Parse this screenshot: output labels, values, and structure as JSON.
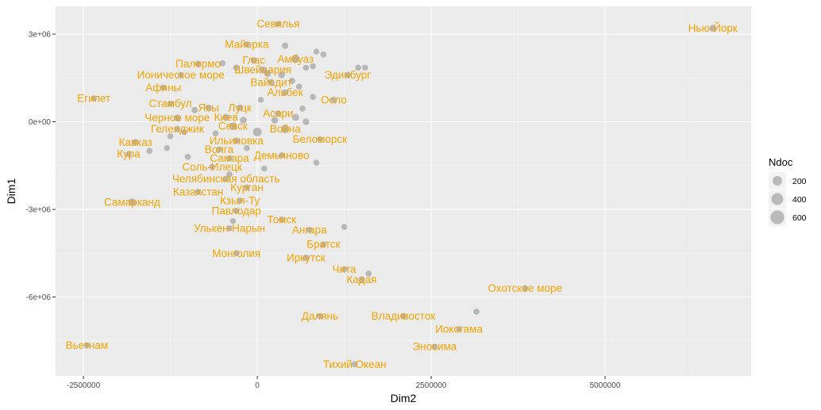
{
  "chart_data": {
    "type": "scatter",
    "title": "",
    "xlabel": "Dim2",
    "ylabel": "Dim1",
    "xlim": [
      -2900000,
      7100000
    ],
    "ylim": [
      -8700000,
      3950000
    ],
    "x_ticks": [
      -2500000,
      0,
      2500000,
      5000000
    ],
    "x_tick_labels": [
      "-2500000",
      "0",
      "2500000",
      "5000000"
    ],
    "y_ticks": [
      3000000,
      0,
      -3000000,
      -6000000
    ],
    "y_tick_labels": [
      "3e+06",
      "0e+00",
      "-3e+06",
      "-6e+06"
    ],
    "grid": true,
    "point_color": "#a6a6a6",
    "label_color": "#f5a300",
    "panel_color": "#ebebeb",
    "legend": {
      "title": "Ndoc",
      "position": "right",
      "entries": [
        {
          "label": "200",
          "value": 200
        },
        {
          "label": "400",
          "value": 400
        },
        {
          "label": "600",
          "value": 600
        }
      ]
    },
    "labeled_points": [
      {
        "label": "Севилья",
        "x": 300000,
        "y": 3350000,
        "ndoc": 30
      },
      {
        "label": "Нью-Йорк",
        "x": 6550000,
        "y": 3200000,
        "ndoc": 60
      },
      {
        "label": "Майорка",
        "x": -150000,
        "y": 2650000,
        "ndoc": 30
      },
      {
        "label": "Глас",
        "x": -50000,
        "y": 2100000,
        "ndoc": 40
      },
      {
        "label": "Амбуаз",
        "x": 550000,
        "y": 2150000,
        "ndoc": 120
      },
      {
        "label": "Палермо",
        "x": -850000,
        "y": 1980000,
        "ndoc": 40
      },
      {
        "label": "Швейцария",
        "x": 80000,
        "y": 1780000,
        "ndoc": 60
      },
      {
        "label": "Ионическое море",
        "x": -1100000,
        "y": 1600000,
        "ndoc": 30
      },
      {
        "label": "Эдинбург",
        "x": 1300000,
        "y": 1600000,
        "ndoc": 40
      },
      {
        "label": "Вайсдит",
        "x": 200000,
        "y": 1350000,
        "ndoc": 40
      },
      {
        "label": "Афины",
        "x": -1350000,
        "y": 1170000,
        "ndoc": 30
      },
      {
        "label": "Альбек",
        "x": 400000,
        "y": 1000000,
        "ndoc": 40
      },
      {
        "label": "Египет",
        "x": -2350000,
        "y": 800000,
        "ndoc": 30
      },
      {
        "label": "Осло",
        "x": 1100000,
        "y": 750000,
        "ndoc": 30
      },
      {
        "label": "Стамбул",
        "x": -1250000,
        "y": 620000,
        "ndoc": 30
      },
      {
        "label": "Ясы",
        "x": -700000,
        "y": 480000,
        "ndoc": 40
      },
      {
        "label": "Луцк",
        "x": -250000,
        "y": 480000,
        "ndoc": 40
      },
      {
        "label": "Асари",
        "x": 300000,
        "y": 280000,
        "ndoc": 40
      },
      {
        "label": "Черное море",
        "x": -1150000,
        "y": 130000,
        "ndoc": 60
      },
      {
        "label": "Киев",
        "x": -450000,
        "y": 150000,
        "ndoc": 60
      },
      {
        "label": "Севск",
        "x": -350000,
        "y": -150000,
        "ndoc": 100
      },
      {
        "label": "Война",
        "x": 400000,
        "y": -250000,
        "ndoc": 120
      },
      {
        "label": "Геленджик",
        "x": -1150000,
        "y": -250000,
        "ndoc": 40
      },
      {
        "label": "Кавказ",
        "x": -1750000,
        "y": -700000,
        "ndoc": 40
      },
      {
        "label": "Ильиновка",
        "x": -300000,
        "y": -650000,
        "ndoc": 40
      },
      {
        "label": "Беломорск",
        "x": 900000,
        "y": -600000,
        "ndoc": 30
      },
      {
        "label": "Кура",
        "x": -1850000,
        "y": -1100000,
        "ndoc": 30
      },
      {
        "label": "Волга",
        "x": -550000,
        "y": -950000,
        "ndoc": 30
      },
      {
        "label": "Демьяново",
        "x": 350000,
        "y": -1150000,
        "ndoc": 30
      },
      {
        "label": "Самара",
        "x": -400000,
        "y": -1250000,
        "ndoc": 30
      },
      {
        "label": "Соль-Илецк",
        "x": -650000,
        "y": -1550000,
        "ndoc": 30
      },
      {
        "label": "Челябинская область",
        "x": -450000,
        "y": -1950000,
        "ndoc": 30
      },
      {
        "label": "Курган",
        "x": -150000,
        "y": -2250000,
        "ndoc": 30
      },
      {
        "label": "Казахстан",
        "x": -850000,
        "y": -2400000,
        "ndoc": 30
      },
      {
        "label": "Самарканд",
        "x": -1800000,
        "y": -2750000,
        "ndoc": 80
      },
      {
        "label": "Кзыл-Ту",
        "x": -250000,
        "y": -2700000,
        "ndoc": 30
      },
      {
        "label": "Павлодар",
        "x": -300000,
        "y": -3050000,
        "ndoc": 30
      },
      {
        "label": "Томск",
        "x": 350000,
        "y": -3350000,
        "ndoc": 30
      },
      {
        "label": "Улькен-Нарын",
        "x": -400000,
        "y": -3650000,
        "ndoc": 30
      },
      {
        "label": "Ангара",
        "x": 750000,
        "y": -3700000,
        "ndoc": 30
      },
      {
        "label": "Братск",
        "x": 950000,
        "y": -4200000,
        "ndoc": 30
      },
      {
        "label": "Монголия",
        "x": -300000,
        "y": -4500000,
        "ndoc": 30
      },
      {
        "label": "Иркутск",
        "x": 700000,
        "y": -4650000,
        "ndoc": 30
      },
      {
        "label": "Чита",
        "x": 1250000,
        "y": -5050000,
        "ndoc": 30
      },
      {
        "label": "Кадая",
        "x": 1500000,
        "y": -5400000,
        "ndoc": 40
      },
      {
        "label": "Охотское море",
        "x": 3850000,
        "y": -5700000,
        "ndoc": 30
      },
      {
        "label": "Далянь",
        "x": 900000,
        "y": -6650000,
        "ndoc": 30
      },
      {
        "label": "Владивосток",
        "x": 2100000,
        "y": -6650000,
        "ndoc": 30
      },
      {
        "label": "Иокогама",
        "x": 2900000,
        "y": -7100000,
        "ndoc": 30
      },
      {
        "label": "Эносима",
        "x": 2550000,
        "y": -7700000,
        "ndoc": 30
      },
      {
        "label": "Вьетнам",
        "x": -2450000,
        "y": -7650000,
        "ndoc": 30
      },
      {
        "label": "Тихий Океан",
        "x": 1400000,
        "y": -8300000,
        "ndoc": 30
      }
    ],
    "unlabeled_points": [
      {
        "x": 400000,
        "y": 2600000,
        "ndoc": 40
      },
      {
        "x": 850000,
        "y": 2400000,
        "ndoc": 30
      },
      {
        "x": 950000,
        "y": 2300000,
        "ndoc": 30
      },
      {
        "x": 800000,
        "y": 1900000,
        "ndoc": 30
      },
      {
        "x": 1450000,
        "y": 1850000,
        "ndoc": 30
      },
      {
        "x": 1550000,
        "y": 1850000,
        "ndoc": 30
      },
      {
        "x": -500000,
        "y": 2000000,
        "ndoc": 30
      },
      {
        "x": -300000,
        "y": 1850000,
        "ndoc": 40
      },
      {
        "x": 700000,
        "y": 1850000,
        "ndoc": 30
      },
      {
        "x": 150000,
        "y": 1650000,
        "ndoc": 50
      },
      {
        "x": 350000,
        "y": 1600000,
        "ndoc": 50
      },
      {
        "x": 500000,
        "y": 1400000,
        "ndoc": 40
      },
      {
        "x": 600000,
        "y": 1200000,
        "ndoc": 30
      },
      {
        "x": 50000,
        "y": 750000,
        "ndoc": 30
      },
      {
        "x": 800000,
        "y": 850000,
        "ndoc": 30
      },
      {
        "x": -900000,
        "y": 400000,
        "ndoc": 40
      },
      {
        "x": 650000,
        "y": 450000,
        "ndoc": 30
      },
      {
        "x": 550000,
        "y": 150000,
        "ndoc": 60
      },
      {
        "x": 700000,
        "y": 0,
        "ndoc": 50
      },
      {
        "x": 0,
        "y": -350000,
        "ndoc": 150
      },
      {
        "x": -200000,
        "y": 50000,
        "ndoc": 60
      },
      {
        "x": 250000,
        "y": 50000,
        "ndoc": 50
      },
      {
        "x": -600000,
        "y": -400000,
        "ndoc": 30
      },
      {
        "x": -1250000,
        "y": -500000,
        "ndoc": 30
      },
      {
        "x": -1300000,
        "y": -900000,
        "ndoc": 30
      },
      {
        "x": -1550000,
        "y": -1000000,
        "ndoc": 30
      },
      {
        "x": -1050000,
        "y": -350000,
        "ndoc": 30
      },
      {
        "x": -150000,
        "y": -900000,
        "ndoc": 30
      },
      {
        "x": 100000,
        "y": -1600000,
        "ndoc": 30
      },
      {
        "x": -1000000,
        "y": -1200000,
        "ndoc": 30
      },
      {
        "x": 850000,
        "y": -1400000,
        "ndoc": 30
      },
      {
        "x": -400000,
        "y": -1800000,
        "ndoc": 30
      },
      {
        "x": -350000,
        "y": -3400000,
        "ndoc": 30
      },
      {
        "x": 1250000,
        "y": -3600000,
        "ndoc": 30
      },
      {
        "x": 1600000,
        "y": -5200000,
        "ndoc": 30
      },
      {
        "x": 3150000,
        "y": -6500000,
        "ndoc": 30
      }
    ]
  }
}
